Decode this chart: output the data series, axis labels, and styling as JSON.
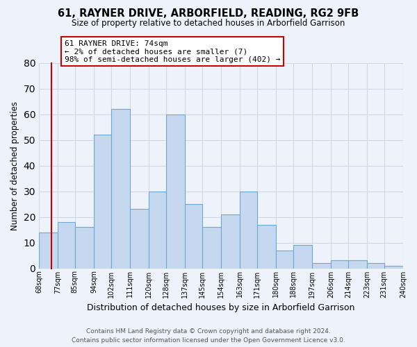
{
  "title": "61, RAYNER DRIVE, ARBORFIELD, READING, RG2 9FB",
  "subtitle": "Size of property relative to detached houses in Arborfield Garrison",
  "xlabel": "Distribution of detached houses by size in Arborfield Garrison",
  "ylabel": "Number of detached properties",
  "bar_color": "#c5d8ef",
  "bar_edge_color": "#6aaad4",
  "bin_edges": [
    68,
    77,
    85,
    94,
    102,
    111,
    120,
    128,
    137,
    145,
    154,
    163,
    171,
    180,
    188,
    197,
    206,
    214,
    223,
    231,
    240
  ],
  "bin_labels": [
    "68sqm",
    "77sqm",
    "85sqm",
    "94sqm",
    "102sqm",
    "111sqm",
    "120sqm",
    "128sqm",
    "137sqm",
    "145sqm",
    "154sqm",
    "163sqm",
    "171sqm",
    "180sqm",
    "188sqm",
    "197sqm",
    "206sqm",
    "214sqm",
    "223sqm",
    "231sqm",
    "240sqm"
  ],
  "values": [
    14,
    18,
    16,
    52,
    62,
    23,
    30,
    60,
    25,
    16,
    21,
    30,
    17,
    7,
    9,
    2,
    3,
    3,
    2,
    1
  ],
  "annotation_line": {
    "x": 74,
    "text_line1": "61 RAYNER DRIVE: 74sqm",
    "text_line2": "← 2% of detached houses are smaller (7)",
    "text_line3": "98% of semi-detached houses are larger (402) →"
  },
  "annotation_box_color": "#ffffff",
  "annotation_box_edge_color": "#cc0000",
  "reference_line_color": "#cc0000",
  "ylim": [
    0,
    80
  ],
  "yticks": [
    0,
    10,
    20,
    30,
    40,
    50,
    60,
    70,
    80
  ],
  "grid_color": "#d0d8e8",
  "background_color": "#eef2fa",
  "footer_line1": "Contains HM Land Registry data © Crown copyright and database right 2024.",
  "footer_line2": "Contains public sector information licensed under the Open Government Licence v3.0."
}
